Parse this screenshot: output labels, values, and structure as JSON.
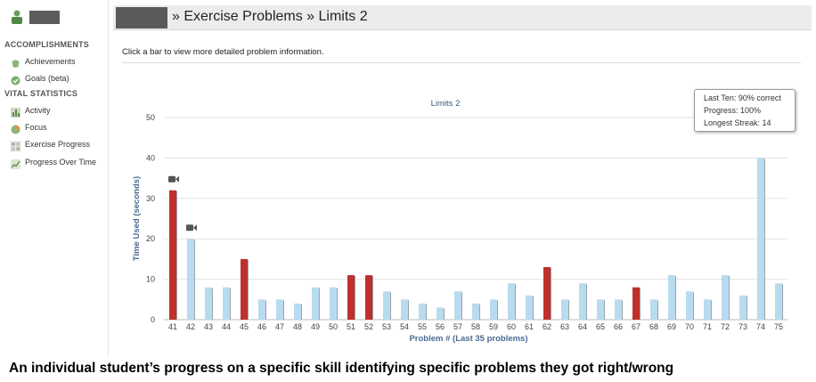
{
  "header": {
    "title": "» Exercise Problems » Limits 2"
  },
  "sidebar": {
    "sections": [
      {
        "title": "ACCOMPLISHMENTS",
        "items": [
          {
            "label": "Achievements",
            "icon": "badge-icon"
          },
          {
            "label": "Goals (beta)",
            "icon": "check-circle-icon"
          }
        ]
      },
      {
        "title": "VITAL STATISTICS",
        "items": [
          {
            "label": "Activity",
            "icon": "bar-chart-icon"
          },
          {
            "label": "Focus",
            "icon": "pie-chart-icon"
          },
          {
            "label": "Exercise Progress",
            "icon": "grid-icon"
          },
          {
            "label": "Progress Over Time",
            "icon": "line-chart-icon"
          }
        ]
      }
    ]
  },
  "instructions": "Click a bar to view more detailed problem information.",
  "tooltip": {
    "last_ten": "Last Ten: 90% correct",
    "progress": "Progress: 100%",
    "streak": "Longest Streak: 14"
  },
  "caption": "An individual student’s progress on a specific skill identifying specific problems they got right/wrong",
  "colors": {
    "correct": "#b8dbef",
    "incorrect": "#c0302a",
    "video": "#555555"
  },
  "chart_data": {
    "type": "bar",
    "title": "Limits 2",
    "xlabel": "Problem # (Last 35 problems)",
    "ylabel": "Time Used (seconds)",
    "ylim": [
      0,
      50
    ],
    "yticks": [
      0,
      10,
      20,
      30,
      40,
      50
    ],
    "categories": [
      "41",
      "42",
      "43",
      "44",
      "45",
      "46",
      "47",
      "48",
      "49",
      "50",
      "51",
      "52",
      "53",
      "54",
      "55",
      "56",
      "57",
      "58",
      "59",
      "60",
      "61",
      "62",
      "63",
      "64",
      "65",
      "66",
      "67",
      "68",
      "69",
      "70",
      "71",
      "72",
      "73",
      "74",
      "75"
    ],
    "values": [
      32,
      20,
      8,
      8,
      15,
      5,
      5,
      4,
      8,
      8,
      11,
      11,
      7,
      5,
      4,
      3,
      7,
      4,
      5,
      9,
      6,
      13,
      5,
      9,
      5,
      5,
      8,
      5,
      11,
      7,
      5,
      11,
      6,
      40,
      9
    ],
    "correct": [
      false,
      true,
      true,
      true,
      false,
      true,
      true,
      true,
      true,
      true,
      false,
      false,
      true,
      true,
      true,
      true,
      true,
      true,
      true,
      true,
      true,
      false,
      true,
      true,
      true,
      true,
      false,
      true,
      true,
      true,
      true,
      true,
      true,
      true,
      true
    ],
    "video_hint": [
      true,
      true,
      false,
      false,
      false,
      false,
      false,
      false,
      false,
      false,
      false,
      false,
      false,
      false,
      false,
      false,
      false,
      false,
      false,
      false,
      false,
      false,
      false,
      false,
      false,
      false,
      false,
      false,
      false,
      false,
      false,
      false,
      false,
      false,
      false
    ],
    "grid": true
  }
}
